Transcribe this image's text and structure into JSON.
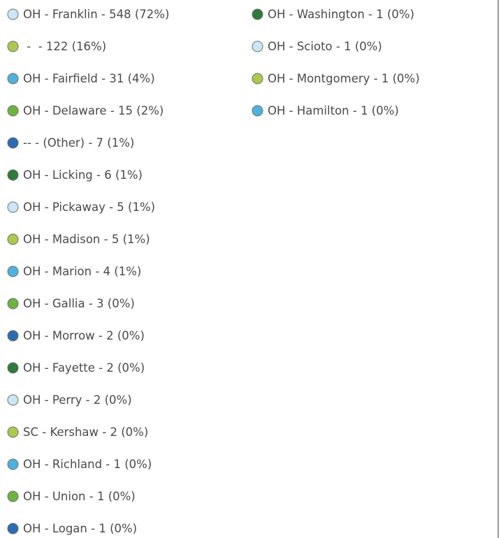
{
  "legend": {
    "items": [
      {
        "label": "OH - Franklin - 548 (72%)",
        "color": "#c9e7f6"
      },
      {
        "label": " -  - 122 (16%)",
        "color": "#abc94c"
      },
      {
        "label": "OH - Fairfield - 31 (4%)",
        "color": "#4eb2dd"
      },
      {
        "label": "OH - Delaware - 15 (2%)",
        "color": "#6cb441"
      },
      {
        "label": "-- - (Other) - 7 (1%)",
        "color": "#2b6cb2"
      },
      {
        "label": "OH - Licking - 6 (1%)",
        "color": "#2f7b3b"
      },
      {
        "label": "OH - Pickaway - 5 (1%)",
        "color": "#c9e7f6"
      },
      {
        "label": "OH - Madison - 5 (1%)",
        "color": "#abc94c"
      },
      {
        "label": "OH - Marion - 4 (1%)",
        "color": "#4eb2dd"
      },
      {
        "label": "OH - Gallia - 3 (0%)",
        "color": "#6cb441"
      },
      {
        "label": "OH - Morrow - 2 (0%)",
        "color": "#2b6cb2"
      },
      {
        "label": "OH - Fayette - 2 (0%)",
        "color": "#2f7b3b"
      },
      {
        "label": "OH - Perry - 2 (0%)",
        "color": "#c9e7f6"
      },
      {
        "label": "SC - Kershaw - 2 (0%)",
        "color": "#abc94c"
      },
      {
        "label": "OH - Richland - 1 (0%)",
        "color": "#4eb2dd"
      },
      {
        "label": "OH - Union - 1 (0%)",
        "color": "#6cb441"
      },
      {
        "label": "OH - Logan - 1 (0%)",
        "color": "#2b6cb2"
      },
      {
        "label": "OH - Washington - 1 (0%)",
        "color": "#2f7b3b"
      },
      {
        "label": "OH - Scioto - 1 (0%)",
        "color": "#c9e7f6"
      },
      {
        "label": "OH - Montgomery - 1 (0%)",
        "color": "#abc94c"
      },
      {
        "label": "OH - Hamilton - 1 (0%)",
        "color": "#4eb2dd"
      }
    ]
  }
}
